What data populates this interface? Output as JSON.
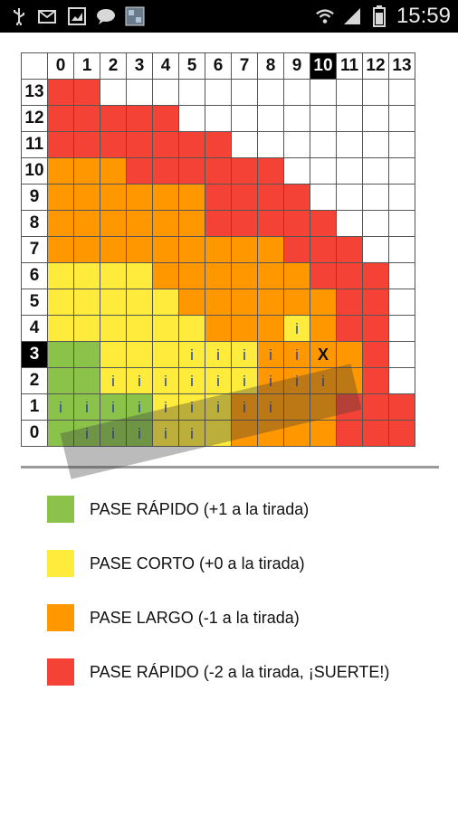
{
  "status_bar": {
    "time": "15:59",
    "left_icons": [
      "usb-icon",
      "email-icon",
      "image-icon",
      "chat-icon",
      "gallery-icon"
    ],
    "right_icons": [
      "wifi-icon",
      "signal-icon",
      "battery-icon"
    ]
  },
  "grid": {
    "col_headers": [
      "0",
      "1",
      "2",
      "3",
      "4",
      "5",
      "6",
      "7",
      "8",
      "9",
      "10",
      "11",
      "12",
      "13"
    ],
    "row_headers": [
      "13",
      "12",
      "11",
      "10",
      "9",
      "8",
      "7",
      "6",
      "5",
      "4",
      "3",
      "2",
      "1",
      "0"
    ],
    "highlight_col": "10",
    "highlight_row": "3",
    "colors": {
      "g": "#8bc34a",
      "y": "#ffeb3b",
      "o": "#ff9800",
      "r": "#f44336",
      "w": "#ffffff"
    },
    "rows": [
      "rrwwwwwwwwwwww",
      "rrrrrwwwwwwwww",
      "rrrrrrrwwwwwww",
      "ooorrrrrrwwwww",
      "oooooorrrrwwww",
      "oooooorrrrrwww",
      "ooooooooorrrww",
      "yyyyoooooorrrw",
      "yyyyyoooooorrw",
      "yyyyyyoooyorrw",
      "ggyyyyyyoooorw",
      "ggyyyyyyoooorw",
      "ggggyyyoooorrr",
      "ggggyyyoooorrr"
    ],
    "marks": [
      {
        "row": "4",
        "col": "9",
        "text": "i"
      },
      {
        "row": "3",
        "col": "5",
        "text": "i"
      },
      {
        "row": "3",
        "col": "6",
        "text": "i"
      },
      {
        "row": "3",
        "col": "7",
        "text": "i"
      },
      {
        "row": "3",
        "col": "8",
        "text": "i"
      },
      {
        "row": "3",
        "col": "9",
        "text": "i"
      },
      {
        "row": "3",
        "col": "10",
        "text": "X"
      },
      {
        "row": "2",
        "col": "2",
        "text": "i"
      },
      {
        "row": "2",
        "col": "3",
        "text": "i"
      },
      {
        "row": "2",
        "col": "4",
        "text": "i"
      },
      {
        "row": "2",
        "col": "5",
        "text": "i"
      },
      {
        "row": "2",
        "col": "6",
        "text": "i"
      },
      {
        "row": "2",
        "col": "7",
        "text": "i"
      },
      {
        "row": "2",
        "col": "8",
        "text": "i"
      },
      {
        "row": "2",
        "col": "9",
        "text": "i"
      },
      {
        "row": "2",
        "col": "10",
        "text": "i"
      },
      {
        "row": "1",
        "col": "0",
        "text": "i"
      },
      {
        "row": "1",
        "col": "1",
        "text": "i"
      },
      {
        "row": "1",
        "col": "2",
        "text": "i"
      },
      {
        "row": "1",
        "col": "3",
        "text": "i"
      },
      {
        "row": "1",
        "col": "4",
        "text": "i"
      },
      {
        "row": "1",
        "col": "5",
        "text": "i"
      },
      {
        "row": "1",
        "col": "6",
        "text": "i"
      },
      {
        "row": "1",
        "col": "7",
        "text": "i"
      },
      {
        "row": "1",
        "col": "8",
        "text": "i"
      },
      {
        "row": "0",
        "col": "1",
        "text": "i"
      },
      {
        "row": "0",
        "col": "2",
        "text": "i"
      },
      {
        "row": "0",
        "col": "3",
        "text": "i"
      },
      {
        "row": "0",
        "col": "4",
        "text": "i"
      },
      {
        "row": "0",
        "col": "5",
        "text": "i"
      }
    ]
  },
  "legend": [
    {
      "label": "PASE RÁPIDO (+1 a la tirada)",
      "color": "#8bc34a"
    },
    {
      "label": "PASE CORTO (+0 a la tirada)",
      "color": "#ffeb3b"
    },
    {
      "label": "PASE LARGO (-1 a la tirada)",
      "color": "#ff9800"
    },
    {
      "label": "PASE RÁPIDO (-2 a la tirada, ¡SUERTE!)",
      "color": "#f44336"
    }
  ]
}
